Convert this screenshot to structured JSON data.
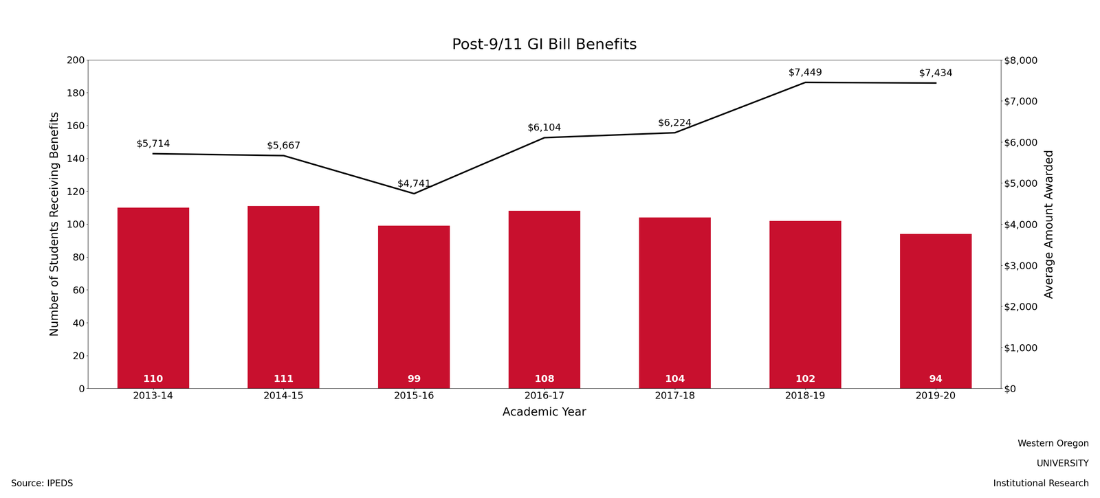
{
  "chart_data": {
    "type": "bar",
    "title": "Post-9/11 GI Bill Benefits",
    "x_label": "Academic Year",
    "y_label": "Number of Students Receiving Benefits",
    "y2_label": "Average Amount Awarded",
    "categories": [
      "2013-14",
      "2014-15",
      "2015-16",
      "2016-17",
      "2017-18",
      "2018-19",
      "2019-20"
    ],
    "series": [
      {
        "type": "bar",
        "color": "#C8102E",
        "data_labels": true,
        "values": [
          110,
          111,
          99,
          108,
          104,
          102,
          94
        ]
      },
      {
        "type": "line",
        "axis": "y2",
        "color": "#000000",
        "data_labels": true,
        "values": [
          5714,
          5667,
          4741,
          6104,
          6224,
          7449,
          7434
        ],
        "value_labels": [
          "$5,714",
          "$5,667",
          "$4,741",
          "$6,104",
          "$6,224",
          "$7,449",
          "$7,434"
        ]
      }
    ],
    "ylim": [
      0,
      200
    ],
    "yticks": [
      0,
      20,
      40,
      60,
      80,
      100,
      120,
      140,
      160,
      180,
      200
    ],
    "y2lim": [
      0,
      8000
    ],
    "y2ticks": [
      {
        "value": 0,
        "label": "$0"
      },
      {
        "value": 1000,
        "label": "$1,000"
      },
      {
        "value": 2000,
        "label": "$2,000"
      },
      {
        "value": 3000,
        "label": "$3,000"
      },
      {
        "value": 4000,
        "label": "$4,000"
      },
      {
        "value": 5000,
        "label": "$5,000"
      },
      {
        "value": 6000,
        "label": "$6,000"
      },
      {
        "value": 7000,
        "label": "$7,000"
      },
      {
        "value": 8000,
        "label": "$8,000"
      }
    ],
    "grid": false,
    "annotations": [
      "Source: IPEDS",
      "Western Oregon",
      "UNIVERSITY",
      "Institutional Research"
    ]
  }
}
